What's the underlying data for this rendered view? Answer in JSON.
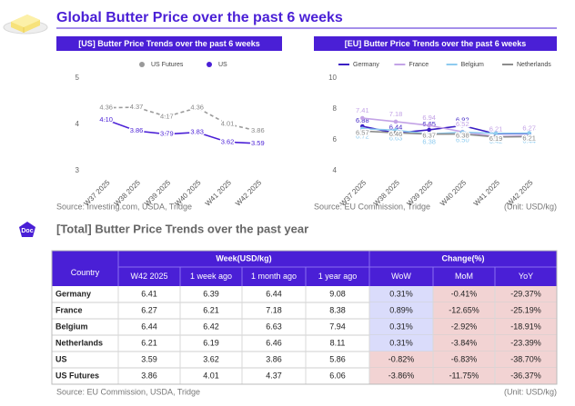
{
  "header": {
    "title": "Global Butter Price over the past 6 weeks"
  },
  "chart_data": [
    {
      "type": "line",
      "title": "[US] Butter Price Trends over the past 6 weeks",
      "categories": [
        "W37 2025",
        "W38 2025",
        "W39 2025",
        "W40 2025",
        "W41 2025",
        "W42 2025"
      ],
      "series": [
        {
          "name": "US Futures",
          "color": "#9a9a9a",
          "dashed": true,
          "values": [
            4.36,
            4.37,
            4.17,
            4.36,
            4.01,
            3.86
          ],
          "value_labels": [
            "4.36",
            "4.37",
            "4.17",
            "4.36",
            "4.01",
            "3.86"
          ]
        },
        {
          "name": "US",
          "color": "#4a1fd6",
          "dashed": false,
          "values": [
            4.1,
            3.86,
            3.79,
            3.83,
            3.62,
            3.59
          ],
          "value_labels": [
            "4.10",
            "3.86",
            "3.79",
            "3.83",
            "3.62",
            "3.59"
          ]
        }
      ],
      "ylim": [
        3,
        5
      ],
      "yticks": [
        3,
        4,
        5
      ],
      "source": "Source: Investing.com, USDA, Tridge"
    },
    {
      "type": "line",
      "title": "[EU] Butter Price Trends over the past 6 weeks",
      "categories": [
        "W37 2025",
        "W38 2025",
        "W39 2025",
        "W40 2025",
        "W41 2025",
        "W42 2025"
      ],
      "series": [
        {
          "name": "Germany",
          "color": "#3b1fc4",
          "dashed": false,
          "values": [
            6.88,
            6.44,
            6.65,
            6.92,
            6.39,
            6.41
          ],
          "value_labels": [
            "6.88",
            "6.44",
            "6.65",
            "6.92",
            "6.39",
            "6.41"
          ]
        },
        {
          "name": "France",
          "color": "#c3a3e6",
          "dashed": false,
          "values": [
            7.41,
            7.18,
            6.94,
            6.52,
            6.21,
            6.27
          ],
          "value_labels": [
            "7.41",
            "7.18",
            "6.94",
            "6.52",
            "6.21",
            "6.27"
          ]
        },
        {
          "name": "Belgium",
          "color": "#8ecbef",
          "dashed": false,
          "values": [
            6.72,
            6.63,
            6.38,
            6.5,
            6.42,
            6.44
          ],
          "value_labels": [
            "6.72",
            "6.63",
            "6.38",
            "6.50",
            "6.42",
            "6.44"
          ]
        },
        {
          "name": "Netherlands",
          "color": "#8c8c8c",
          "dashed": false,
          "values": [
            6.57,
            6.46,
            6.37,
            6.38,
            6.19,
            6.21
          ],
          "value_labels": [
            "6.57",
            "6.46",
            "6.37",
            "6.38",
            "6.19",
            "6.21"
          ]
        }
      ],
      "ylim": [
        4,
        10
      ],
      "yticks": [
        4,
        6,
        8,
        10
      ],
      "source": "Source: EU Commission, Tridge",
      "unit": "(Unit: USD/kg)"
    }
  ],
  "table_section": {
    "badge": "Doc",
    "title": "[Total] Butter Price Trends over the past year",
    "group_headers": [
      "Week(USD/kg)",
      "Change(%)"
    ],
    "columns": [
      "Country",
      "W42 2025",
      "1 week ago",
      "1 month ago",
      "1 year ago",
      "WoW",
      "MoM",
      "YoY"
    ],
    "rows": [
      [
        "Germany",
        "6.41",
        "6.39",
        "6.44",
        "9.08",
        "0.31%",
        "-0.41%",
        "-29.37%"
      ],
      [
        "France",
        "6.27",
        "6.21",
        "7.18",
        "8.38",
        "0.89%",
        "-12.65%",
        "-25.19%"
      ],
      [
        "Belgium",
        "6.44",
        "6.42",
        "6.63",
        "7.94",
        "0.31%",
        "-2.92%",
        "-18.91%"
      ],
      [
        "Netherlands",
        "6.21",
        "6.19",
        "6.46",
        "8.11",
        "0.31%",
        "-3.84%",
        "-23.39%"
      ],
      [
        "US",
        "3.59",
        "3.62",
        "3.86",
        "5.86",
        "-0.82%",
        "-6.83%",
        "-38.70%"
      ],
      [
        "US Futures",
        "3.86",
        "4.01",
        "4.37",
        "6.06",
        "-3.86%",
        "-11.75%",
        "-36.37%"
      ]
    ],
    "source": "Source: EU Commission, USDA, Tridge",
    "unit": "(Unit: USD/kg)"
  }
}
